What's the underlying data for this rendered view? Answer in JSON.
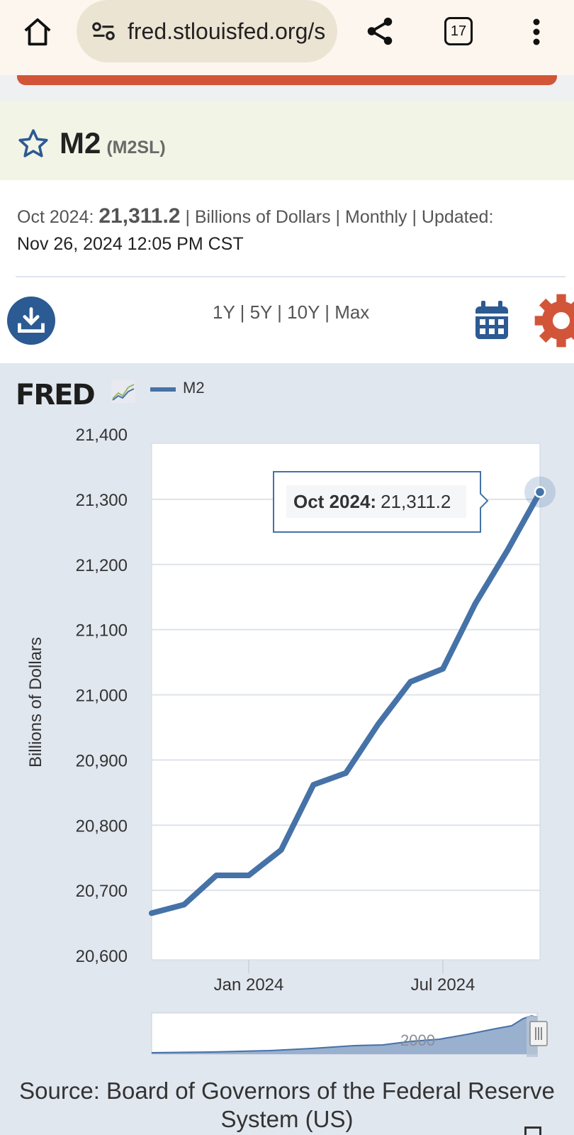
{
  "browser": {
    "url": "fred.stlouisfed.org/s",
    "tab_count": "17"
  },
  "series": {
    "title": "M2",
    "id": "(M2SL)"
  },
  "meta": {
    "obs_label": "Oct 2024:",
    "obs_value": "21,311.2",
    "details": "| Billions of Dollars | Monthly | Updated:",
    "updated": "Nov 26, 2024 12:05 PM CST"
  },
  "range": {
    "y1": "1Y",
    "y5": "5Y",
    "y10": "10Y",
    "max": "Max",
    "sep": "|"
  },
  "chart_header": {
    "logo_text": "FRED",
    "legend": "M2"
  },
  "tooltip": {
    "label": "Oct 2024:",
    "value": "21,311.2"
  },
  "navigator": {
    "label": "2000"
  },
  "source": {
    "text": "Source: Board of Governors of the Federal Reserve System (US)"
  },
  "colors": {
    "line": "#4572a7",
    "accent_orange": "#d2553a",
    "icon_blue": "#2c5a92"
  },
  "chart_data": {
    "type": "line",
    "ylabel": "Billions of Dollars",
    "ylim": [
      20600,
      21400
    ],
    "yticks": [
      21400,
      21300,
      21200,
      21100,
      21000,
      20900,
      20800,
      20700,
      20600
    ],
    "ytick_labels": [
      "21,400",
      "21,300",
      "21,200",
      "21,100",
      "21,000",
      "20,900",
      "20,800",
      "20,700",
      "20,600"
    ],
    "xtick_labels": [
      "Jan 2024",
      "Jul 2024"
    ],
    "grid": true,
    "series": [
      {
        "name": "M2",
        "x": [
          "2023-10",
          "2023-11",
          "2023-12",
          "2024-01",
          "2024-02",
          "2024-03",
          "2024-04",
          "2024-05",
          "2024-06",
          "2024-07",
          "2024-08",
          "2024-09",
          "2024-10"
        ],
        "values": [
          20665,
          20678,
          20723,
          20723,
          20762,
          20862,
          20880,
          20955,
          21020,
          21040,
          21140,
          21222,
          21311.2
        ]
      }
    ]
  }
}
